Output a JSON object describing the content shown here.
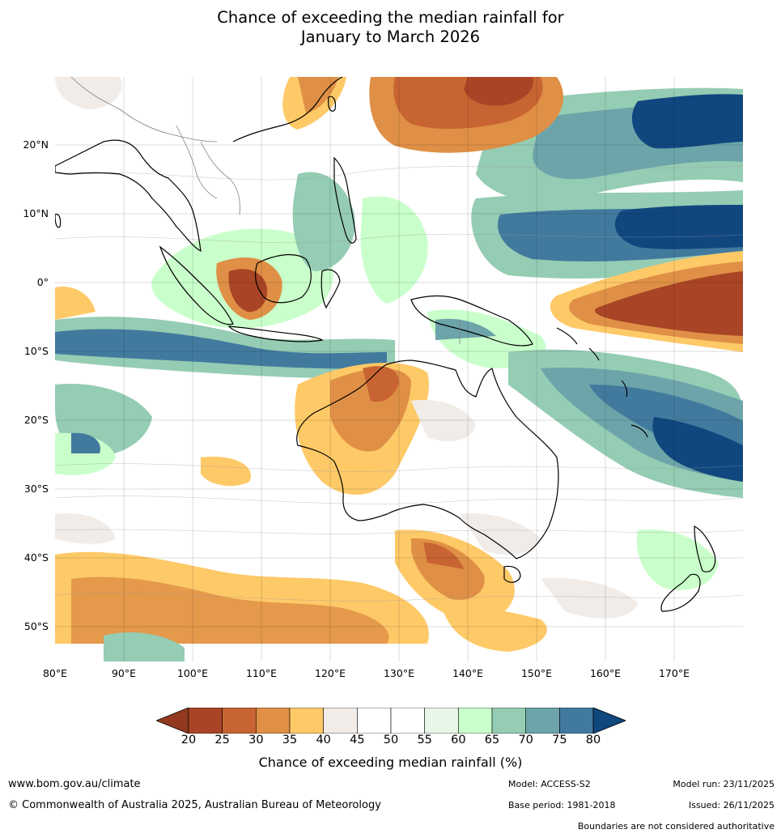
{
  "title": {
    "line1": "Chance of exceeding the median rainfall for",
    "line2": "January to March 2026"
  },
  "map": {
    "lat_labels": [
      "20°N",
      "10°N",
      "0°",
      "10°S",
      "20°S",
      "30°S",
      "40°S",
      "50°S"
    ],
    "lon_labels": [
      "80°E",
      "90°E",
      "100°E",
      "110°E",
      "120°E",
      "130°E",
      "140°E",
      "150°E",
      "160°E",
      "170°E"
    ]
  },
  "colorbar": {
    "ticks": [
      "20",
      "25",
      "30",
      "35",
      "40",
      "45",
      "50",
      "55",
      "60",
      "65",
      "70",
      "75",
      "80"
    ],
    "colors": [
      "#a94526",
      "#c86432",
      "#df9046",
      "#fec967",
      "#f1ece8",
      "#ffffff",
      "#ffffff",
      "#e8f6e7",
      "#c9ffcb",
      "#95ccb4",
      "#6ca4aa",
      "#427a9e"
    ],
    "low_color": "#92391f",
    "high_color": "#11477f",
    "label": "Chance of exceeding median rainfall (%)"
  },
  "footer": {
    "url": "www.bom.gov.au/climate",
    "copyright": "© Commonwealth of Australia 2025, Australian Bureau of Meteorology",
    "model": "Model: ACCESS-S2",
    "base_period": "Base period: 1981-2018",
    "model_run": "Model run: 23/11/2025",
    "issued": "Issued: 26/11/2025",
    "disclaimer": "Boundaries are not considered authoritative"
  }
}
